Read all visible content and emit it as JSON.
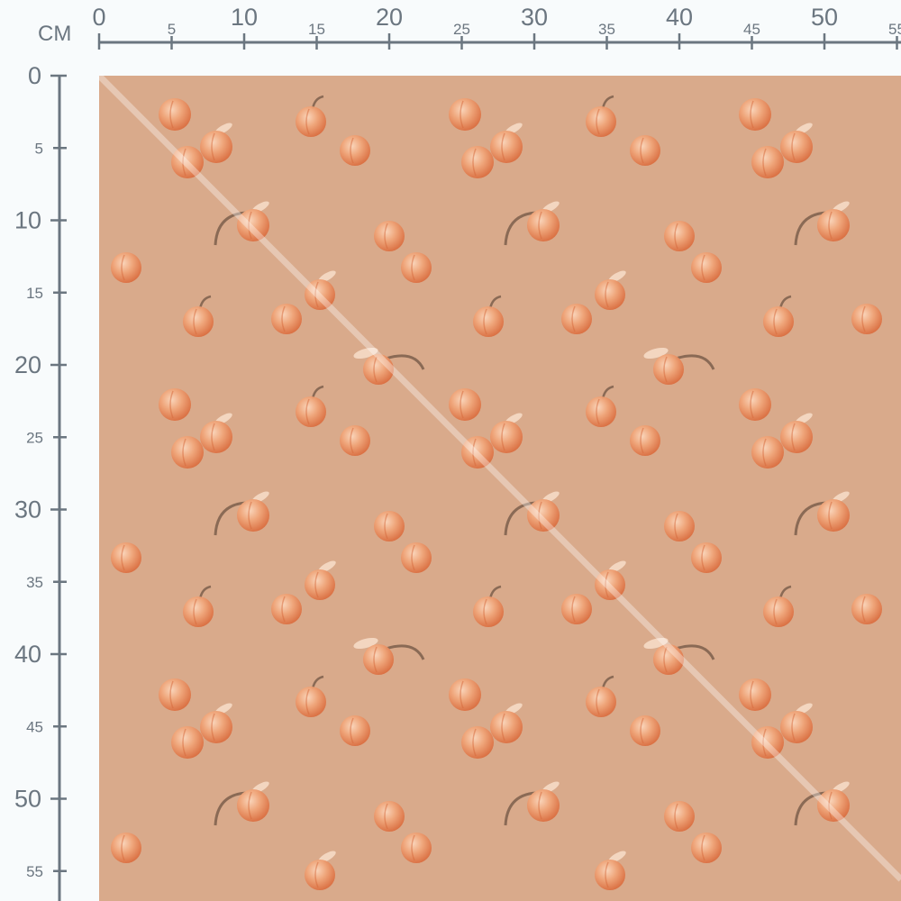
{
  "ruler": {
    "unit": "CM",
    "horizontal_labels": [
      "0",
      "5",
      "10",
      "15",
      "20",
      "25",
      "30",
      "35",
      "40",
      "45",
      "50",
      "55"
    ],
    "vertical_labels": [
      "0",
      "5",
      "10",
      "15",
      "20",
      "25",
      "30",
      "35",
      "40",
      "45",
      "50",
      "55"
    ]
  },
  "fabric": {
    "pattern": "peaches",
    "background_color": "#d9aa8b",
    "motif_color": "#ea8a58",
    "ruler_color": "#6b7680"
  }
}
